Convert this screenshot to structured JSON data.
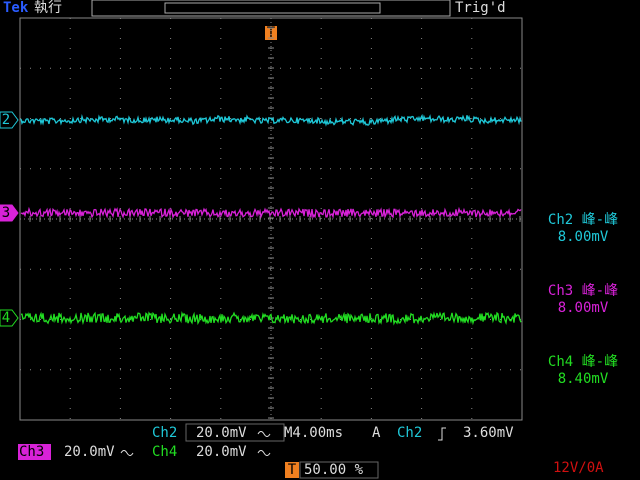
{
  "header": {
    "brand": "Tek",
    "status": "執行",
    "trigger_state": "Trig'd",
    "trigger_marker": "T"
  },
  "channels": [
    {
      "marker": "2",
      "color": "#1fc8d8"
    },
    {
      "marker": "3",
      "color": "#d822d8"
    },
    {
      "marker": "4",
      "color": "#22dd22"
    }
  ],
  "measurements": [
    {
      "label": "Ch2 峰-峰",
      "value": "8.00mV",
      "color": "#1fc8d8"
    },
    {
      "label": "Ch3 峰-峰",
      "value": "8.00mV",
      "color": "#d822d8"
    },
    {
      "label": "Ch4 峰-峰",
      "value": "8.40mV",
      "color": "#22dd22"
    }
  ],
  "status_bar": {
    "ch2_label": "Ch2",
    "ch2_scale": "20.0mV",
    "timebase": "M4.00ms",
    "trigger_mode": "A",
    "trigger_source": "Ch2",
    "trigger_level": "3.60mV",
    "ch3_label": "Ch3",
    "ch3_scale": "20.0mV",
    "ch4_label": "Ch4",
    "ch4_scale": "20.0mV",
    "trigger_position_marker": "T",
    "trigger_position": "50.00 %"
  },
  "watermark": "12V/0A"
}
